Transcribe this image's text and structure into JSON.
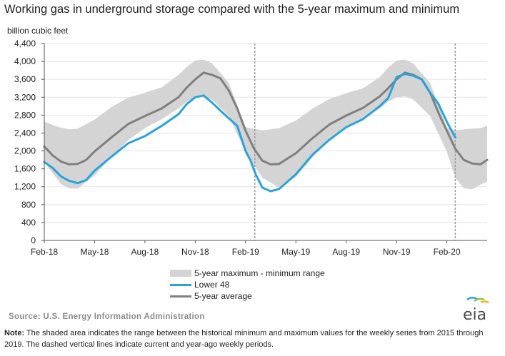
{
  "title": "Working gas in underground storage compared with the 5-year maximum and minimum",
  "unit_label": "billion cubic feet",
  "legend": {
    "range": "5-year maximum - minimum range",
    "lower48": "Lower 48",
    "average": "5-year average"
  },
  "source": "Source: U.S. Energy Information Administration",
  "note": {
    "label": "Note:",
    "text": " The shaded area indicates the range between the historical minimum and maximum values for the weekly series from 2015 through 2019. The dashed vertical lines indicate current and year-ago weekly periods."
  },
  "logo_text": "eia",
  "colors": {
    "range": "#d4d4d4",
    "lower48": "#2aa3da",
    "average": "#808080",
    "grid": "#e3e3e3",
    "marker": "#9a9a9a"
  },
  "chart_data": {
    "type": "area",
    "x_unit": "month index (0 = Feb-18)",
    "xlim": [
      0,
      26.4
    ],
    "ylim": [
      0,
      4400
    ],
    "y_ticks": [
      0,
      400,
      800,
      1200,
      1600,
      2000,
      2400,
      2800,
      3200,
      3600,
      4000,
      4400
    ],
    "y_tick_labels": [
      "0",
      "400",
      "800",
      "1,200",
      "1,600",
      "2,000",
      "2,400",
      "2,800",
      "3,200",
      "3,600",
      "4,000",
      "4,400"
    ],
    "x_ticks": [
      0,
      3,
      6,
      9,
      12,
      15,
      18,
      21,
      24
    ],
    "x_tick_labels": [
      "Feb-18",
      "May-18",
      "Aug-18",
      "Nov-18",
      "Feb-19",
      "May-19",
      "Aug-19",
      "Nov-19",
      "Feb-20"
    ],
    "grid": true,
    "legend_position": "bottom-center",
    "vertical_markers": [
      12.55,
      24.5
    ],
    "series": [
      {
        "name": "5-year maximum - minimum range",
        "kind": "band",
        "x": [
          0,
          0.5,
          1,
          1.5,
          2,
          3,
          4,
          5,
          6,
          7,
          8,
          8.5,
          9,
          9.5,
          10,
          11,
          12,
          13,
          14,
          15,
          16,
          17,
          18,
          19,
          20,
          20.5,
          21,
          21.5,
          22,
          23,
          24,
          24.5,
          25,
          25.5,
          26,
          26.4
        ],
        "max": [
          2660,
          2580,
          2520,
          2480,
          2500,
          2700,
          2980,
          3190,
          3300,
          3420,
          3700,
          3880,
          4020,
          4040,
          3960,
          3520,
          2530,
          2460,
          2510,
          2680,
          2950,
          3160,
          3290,
          3400,
          3650,
          3860,
          4020,
          4040,
          3950,
          3520,
          2520,
          2460,
          2480,
          2500,
          2510,
          2560
        ],
        "min": [
          1750,
          1500,
          1260,
          1160,
          1160,
          1450,
          1870,
          2240,
          2510,
          2710,
          2950,
          3100,
          3200,
          3220,
          3150,
          2780,
          1980,
          1400,
          1180,
          1420,
          1870,
          2240,
          2510,
          2710,
          2950,
          3100,
          3200,
          3220,
          3150,
          2780,
          1980,
          1400,
          1170,
          1140,
          1250,
          1310
        ]
      },
      {
        "name": "Lower 48",
        "kind": "line",
        "x": [
          0,
          0.5,
          1,
          1.5,
          2,
          2.5,
          3,
          4,
          5,
          6,
          7,
          8,
          8.5,
          9,
          9.5,
          10,
          10.5,
          11,
          11.5,
          12,
          12.3,
          12.6,
          13,
          13.5,
          14,
          15,
          16,
          17,
          18,
          19,
          20,
          20.5,
          21,
          21.5,
          22,
          22.5,
          23,
          23.5,
          24,
          24.5
        ],
        "y": [
          1750,
          1620,
          1430,
          1330,
          1280,
          1350,
          1560,
          1870,
          2170,
          2330,
          2560,
          2820,
          3050,
          3200,
          3240,
          3080,
          2900,
          2730,
          2560,
          2000,
          1780,
          1480,
          1180,
          1100,
          1150,
          1480,
          1920,
          2250,
          2530,
          2710,
          3000,
          3180,
          3650,
          3720,
          3680,
          3600,
          3300,
          3050,
          2650,
          2300
        ]
      },
      {
        "name": "5-year average",
        "kind": "line",
        "x": [
          0,
          0.5,
          1,
          1.5,
          2,
          2.5,
          3,
          4,
          5,
          6,
          7,
          8,
          8.5,
          9,
          9.5,
          10,
          10.5,
          11,
          11.5,
          12,
          12.5,
          13,
          13.5,
          14,
          15,
          16,
          17,
          18,
          19,
          20,
          20.5,
          21,
          21.5,
          22,
          22.5,
          23,
          23.5,
          24,
          24.5,
          25,
          25.5,
          26,
          26.4
        ],
        "y": [
          2100,
          1900,
          1760,
          1700,
          1710,
          1800,
          1990,
          2300,
          2600,
          2780,
          2950,
          3200,
          3420,
          3600,
          3750,
          3700,
          3620,
          3350,
          2950,
          2450,
          2050,
          1780,
          1700,
          1710,
          1950,
          2290,
          2590,
          2790,
          2960,
          3220,
          3400,
          3600,
          3750,
          3700,
          3600,
          3300,
          2850,
          2450,
          2050,
          1800,
          1720,
          1700,
          1800
        ]
      }
    ]
  }
}
